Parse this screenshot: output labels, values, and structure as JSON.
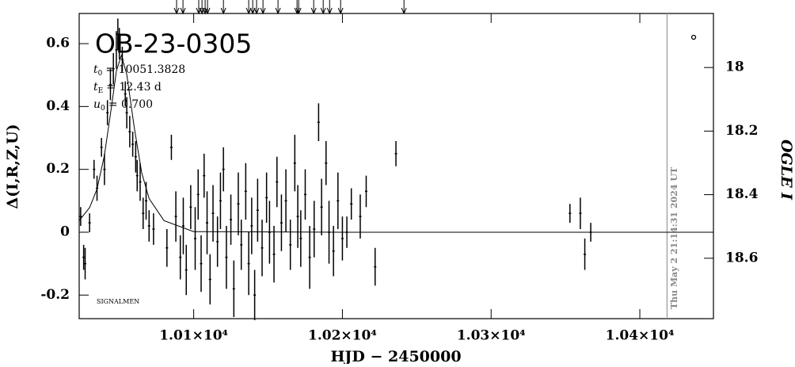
{
  "chart_data": {
    "type": "scatter",
    "title": "OB-23-0305",
    "parameters": [
      {
        "symbol": "t",
        "subscript": "0",
        "value": "= 10051.3828"
      },
      {
        "symbol": "t",
        "subscript": "E",
        "value": "= 12.43 d"
      },
      {
        "symbol": "u",
        "subscript": "0",
        "value": "= 0.700"
      }
    ],
    "credit": "SIGNALMEN",
    "timestamp": "Thu May  2 21:14:31 2024 UT",
    "xlabel": "HJD − 2450000",
    "ylabel": "Δ(I,R,Z,U)",
    "y2label": "OGLE I",
    "xlim": [
      10023,
      10449.5
    ],
    "ylim": [
      -0.275,
      0.696
    ],
    "y2lim": [
      18.79,
      17.83
    ],
    "xticks": [
      {
        "value": 10100,
        "label": "1.01×10⁴"
      },
      {
        "value": 10200,
        "label": "1.02×10⁴"
      },
      {
        "value": 10300,
        "label": "1.03×10⁴"
      },
      {
        "value": 10400,
        "label": "1.04×10⁴"
      }
    ],
    "yticks": [
      -0.2,
      0,
      0.2,
      0.4,
      0.6
    ],
    "y2ticks": [
      18,
      18.2,
      18.4,
      18.6
    ],
    "color": "#000000",
    "date_line": 10418.3,
    "date_line_color": "#999999",
    "arrows": [
      10088.5,
      10092.8,
      10103.4,
      10105.6,
      10107.7,
      10109.3,
      10120.0,
      10137.0,
      10139.7,
      10142.3,
      10146.6,
      10156.7,
      10169.5,
      10170.6,
      10180.7,
      10187.1,
      10191.4,
      10198.8,
      10241.4
    ],
    "x": [
      10024,
      10026,
      10027,
      10030,
      10033,
      10035,
      10038,
      10040,
      10042,
      10044,
      10046,
      10048,
      10049,
      10050,
      10052,
      10054,
      10055,
      10057,
      10059,
      10061,
      10062,
      10064,
      10066,
      10068,
      10070,
      10073,
      10082,
      10085,
      10088,
      10091,
      10093,
      10095,
      10098,
      10101,
      10103,
      10105,
      10107,
      10109,
      10111,
      10113,
      10116,
      10118,
      10120,
      10122,
      10125,
      10127,
      10130,
      10132,
      10135,
      10137,
      10139,
      10141,
      10143,
      10146,
      10149,
      10151,
      10154,
      10156,
      10159,
      10162,
      10165,
      10168,
      10170,
      10172,
      10175,
      10178,
      10181,
      10184,
      10186,
      10189,
      10191,
      10194,
      10197,
      10200,
      10203,
      10206,
      10212,
      10216,
      10222,
      10236,
      10353,
      10360,
      10363,
      10367
    ],
    "values": [
      0.05,
      -0.08,
      -0.1,
      0.03,
      0.2,
      0.14,
      0.27,
      0.2,
      0.38,
      0.47,
      0.52,
      0.58,
      0.63,
      0.6,
      0.55,
      0.44,
      0.38,
      0.32,
      0.28,
      0.24,
      0.18,
      0.16,
      0.06,
      0.1,
      0.02,
      0.01,
      -0.05,
      0.27,
      0.05,
      -0.08,
      0.02,
      -0.12,
      0.08,
      -0.02,
      0.12,
      -0.1,
      0.18,
      0.03,
      -0.15,
      0.06,
      -0.03,
      0.1,
      0.2,
      -0.08,
      0.04,
      -0.18,
      0.09,
      -0.04,
      0.13,
      -0.1,
      0.02,
      -0.2,
      0.07,
      -0.05,
      0.11,
      0.0,
      -0.07,
      0.16,
      0.03,
      0.1,
      -0.04,
      0.22,
      0.05,
      -0.02,
      0.12,
      -0.08,
      0.01,
      0.35,
      0.08,
      0.22,
      0.0,
      -0.06,
      0.1,
      -0.02,
      0.0,
      0.09,
      0.05,
      0.13,
      -0.11,
      0.25,
      0.06,
      0.06,
      -0.07,
      0.0
    ],
    "errors": [
      0.03,
      0.04,
      0.05,
      0.03,
      0.03,
      0.04,
      0.03,
      0.05,
      0.04,
      0.05,
      0.05,
      0.06,
      0.05,
      0.05,
      0.04,
      0.04,
      0.05,
      0.05,
      0.04,
      0.05,
      0.05,
      0.06,
      0.05,
      0.06,
      0.05,
      0.05,
      0.06,
      0.04,
      0.08,
      0.07,
      0.09,
      0.08,
      0.07,
      0.1,
      0.08,
      0.09,
      0.07,
      0.1,
      0.08,
      0.09,
      0.08,
      0.09,
      0.07,
      0.1,
      0.08,
      0.09,
      0.1,
      0.08,
      0.09,
      0.1,
      0.09,
      0.08,
      0.1,
      0.09,
      0.08,
      0.1,
      0.09,
      0.08,
      0.09,
      0.1,
      0.08,
      0.09,
      0.1,
      0.09,
      0.08,
      0.1,
      0.09,
      0.06,
      0.09,
      0.07,
      0.1,
      0.08,
      0.09,
      0.07,
      0.05,
      0.05,
      0.07,
      0.05,
      0.06,
      0.04,
      0.03,
      0.05,
      0.05,
      0.03
    ],
    "model": {
      "x": [
        10023,
        10030,
        10035,
        10040,
        10045,
        10048,
        10051.38,
        10055,
        10060,
        10065,
        10070,
        10080,
        10100,
        10200,
        10449.5
      ],
      "values": [
        0.037,
        0.078,
        0.137,
        0.245,
        0.408,
        0.513,
        0.563,
        0.502,
        0.334,
        0.19,
        0.107,
        0.037,
        0.002,
        0.0,
        0.0
      ]
    }
  }
}
